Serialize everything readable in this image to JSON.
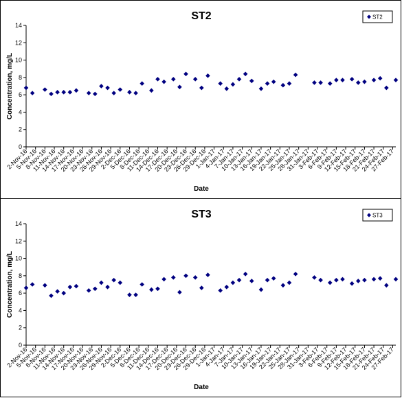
{
  "chart_data": [
    {
      "type": "scatter",
      "title": "ST2",
      "xlabel": "Date",
      "ylabel": "Concentration, mg/L",
      "ylim": [
        0,
        14
      ],
      "yticks": [
        "0",
        "2",
        "4",
        "6",
        "8",
        "10",
        "12",
        "14"
      ],
      "xlim": [
        "2016-11-02",
        "2017-02-28"
      ],
      "xticks": [
        "2-Nov-16",
        "5-Nov-16",
        "8-Nov-16",
        "11-Nov-16",
        "14-Nov-16",
        "17-Nov-16",
        "20-Nov-16",
        "23-Nov-16",
        "26-Nov-16",
        "29-Nov-16",
        "2-Dec-16",
        "5-Dec-16",
        "8-Dec-16",
        "11-Dec-16",
        "14-Dec-16",
        "17-Dec-16",
        "20-Dec-16",
        "23-Dec-16",
        "26-Dec-16",
        "29-Dec-16",
        "1-Jan-17",
        "4-Jan-17",
        "7-Jan-17",
        "10-Jan-17",
        "13-Jan-17",
        "16-Jan-17",
        "19-Jan-17",
        "22-Jan-17",
        "25-Jan-17",
        "28-Jan-17",
        "31-Jan-17",
        "3-Feb-17",
        "6-Feb-17",
        "9-Feb-17",
        "12-Feb-17",
        "15-Feb-17",
        "18-Feb-17",
        "21-Feb-17",
        "24-Feb-17",
        "27-Feb-17"
      ],
      "grid": false,
      "legend_position": "top-right",
      "marker_color": "#000080",
      "series": [
        {
          "name": "ST2",
          "points": [
            [
              "2016-11-02",
              6.8
            ],
            [
              "2016-11-04",
              6.2
            ],
            [
              "2016-11-08",
              6.6
            ],
            [
              "2016-11-10",
              6.1
            ],
            [
              "2016-11-12",
              6.3
            ],
            [
              "2016-11-14",
              6.3
            ],
            [
              "2016-11-16",
              6.3
            ],
            [
              "2016-11-18",
              6.5
            ],
            [
              "2016-11-22",
              6.2
            ],
            [
              "2016-11-24",
              6.1
            ],
            [
              "2016-11-26",
              7.0
            ],
            [
              "2016-11-28",
              6.8
            ],
            [
              "2016-11-30",
              6.2
            ],
            [
              "2016-12-02",
              6.6
            ],
            [
              "2016-12-05",
              6.3
            ],
            [
              "2016-12-07",
              6.2
            ],
            [
              "2016-12-09",
              7.3
            ],
            [
              "2016-12-12",
              6.5
            ],
            [
              "2016-12-14",
              7.8
            ],
            [
              "2016-12-16",
              7.5
            ],
            [
              "2016-12-19",
              7.8
            ],
            [
              "2016-12-21",
              6.9
            ],
            [
              "2016-12-23",
              8.4
            ],
            [
              "2016-12-26",
              7.8
            ],
            [
              "2016-12-28",
              6.8
            ],
            [
              "2016-12-30",
              8.2
            ],
            [
              "2017-01-03",
              7.3
            ],
            [
              "2017-01-05",
              6.7
            ],
            [
              "2017-01-07",
              7.2
            ],
            [
              "2017-01-09",
              7.8
            ],
            [
              "2017-01-11",
              8.4
            ],
            [
              "2017-01-13",
              7.6
            ],
            [
              "2017-01-16",
              6.7
            ],
            [
              "2017-01-18",
              7.3
            ],
            [
              "2017-01-20",
              7.5
            ],
            [
              "2017-01-23",
              7.1
            ],
            [
              "2017-01-25",
              7.3
            ],
            [
              "2017-01-27",
              8.3
            ],
            [
              "2017-02-02",
              7.4
            ],
            [
              "2017-02-04",
              7.4
            ],
            [
              "2017-02-07",
              7.3
            ],
            [
              "2017-02-09",
              7.7
            ],
            [
              "2017-02-11",
              7.7
            ],
            [
              "2017-02-14",
              7.8
            ],
            [
              "2017-02-16",
              7.4
            ],
            [
              "2017-02-18",
              7.5
            ],
            [
              "2017-02-21",
              7.7
            ],
            [
              "2017-02-23",
              7.9
            ],
            [
              "2017-02-25",
              6.8
            ],
            [
              "2017-02-28",
              7.7
            ]
          ]
        }
      ]
    },
    {
      "type": "scatter",
      "title": "ST3",
      "xlabel": "Date",
      "ylabel": "Concentration, mg/L",
      "ylim": [
        0,
        14
      ],
      "yticks": [
        "0",
        "2",
        "4",
        "6",
        "8",
        "10",
        "12",
        "14"
      ],
      "xlim": [
        "2016-11-02",
        "2017-02-28"
      ],
      "xticks": [
        "2-Nov-16",
        "5-Nov-16",
        "8-Nov-16",
        "11-Nov-16",
        "14-Nov-16",
        "17-Nov-16",
        "20-Nov-16",
        "23-Nov-16",
        "26-Nov-16",
        "29-Nov-16",
        "2-Dec-16",
        "5-Dec-16",
        "8-Dec-16",
        "11-Dec-16",
        "14-Dec-16",
        "17-Dec-16",
        "20-Dec-16",
        "23-Dec-16",
        "26-Dec-16",
        "29-Dec-16",
        "1-Jan-17",
        "4-Jan-17",
        "7-Jan-17",
        "10-Jan-17",
        "13-Jan-17",
        "16-Jan-17",
        "19-Jan-17",
        "22-Jan-17",
        "25-Jan-17",
        "28-Jan-17",
        "31-Jan-17",
        "3-Feb-17",
        "6-Feb-17",
        "9-Feb-17",
        "12-Feb-17",
        "15-Feb-17",
        "18-Feb-17",
        "21-Feb-17",
        "24-Feb-17",
        "27-Feb-17"
      ],
      "grid": false,
      "legend_position": "top-right",
      "marker_color": "#000080",
      "series": [
        {
          "name": "ST3",
          "points": [
            [
              "2016-11-02",
              6.6
            ],
            [
              "2016-11-04",
              7.0
            ],
            [
              "2016-11-08",
              6.9
            ],
            [
              "2016-11-10",
              5.7
            ],
            [
              "2016-11-12",
              6.2
            ],
            [
              "2016-11-14",
              6.0
            ],
            [
              "2016-11-16",
              6.7
            ],
            [
              "2016-11-18",
              6.8
            ],
            [
              "2016-11-22",
              6.3
            ],
            [
              "2016-11-24",
              6.5
            ],
            [
              "2016-11-26",
              7.2
            ],
            [
              "2016-11-28",
              6.7
            ],
            [
              "2016-11-30",
              7.5
            ],
            [
              "2016-12-02",
              7.2
            ],
            [
              "2016-12-05",
              5.8
            ],
            [
              "2016-12-07",
              5.8
            ],
            [
              "2016-12-09",
              7.0
            ],
            [
              "2016-12-12",
              6.4
            ],
            [
              "2016-12-14",
              6.5
            ],
            [
              "2016-12-16",
              7.6
            ],
            [
              "2016-12-19",
              7.8
            ],
            [
              "2016-12-21",
              6.1
            ],
            [
              "2016-12-23",
              8.0
            ],
            [
              "2016-12-26",
              7.8
            ],
            [
              "2016-12-28",
              6.6
            ],
            [
              "2016-12-30",
              8.1
            ],
            [
              "2017-01-03",
              6.3
            ],
            [
              "2017-01-05",
              6.7
            ],
            [
              "2017-01-07",
              7.2
            ],
            [
              "2017-01-09",
              7.5
            ],
            [
              "2017-01-11",
              8.2
            ],
            [
              "2017-01-13",
              7.4
            ],
            [
              "2017-01-16",
              6.4
            ],
            [
              "2017-01-18",
              7.5
            ],
            [
              "2017-01-20",
              7.7
            ],
            [
              "2017-01-23",
              6.9
            ],
            [
              "2017-01-25",
              7.2
            ],
            [
              "2017-01-27",
              8.2
            ],
            [
              "2017-02-02",
              7.8
            ],
            [
              "2017-02-04",
              7.5
            ],
            [
              "2017-02-07",
              7.2
            ],
            [
              "2017-02-09",
              7.5
            ],
            [
              "2017-02-11",
              7.6
            ],
            [
              "2017-02-14",
              7.1
            ],
            [
              "2017-02-16",
              7.4
            ],
            [
              "2017-02-18",
              7.5
            ],
            [
              "2017-02-21",
              7.6
            ],
            [
              "2017-02-23",
              7.7
            ],
            [
              "2017-02-25",
              6.9
            ],
            [
              "2017-02-28",
              7.6
            ]
          ]
        }
      ]
    }
  ]
}
